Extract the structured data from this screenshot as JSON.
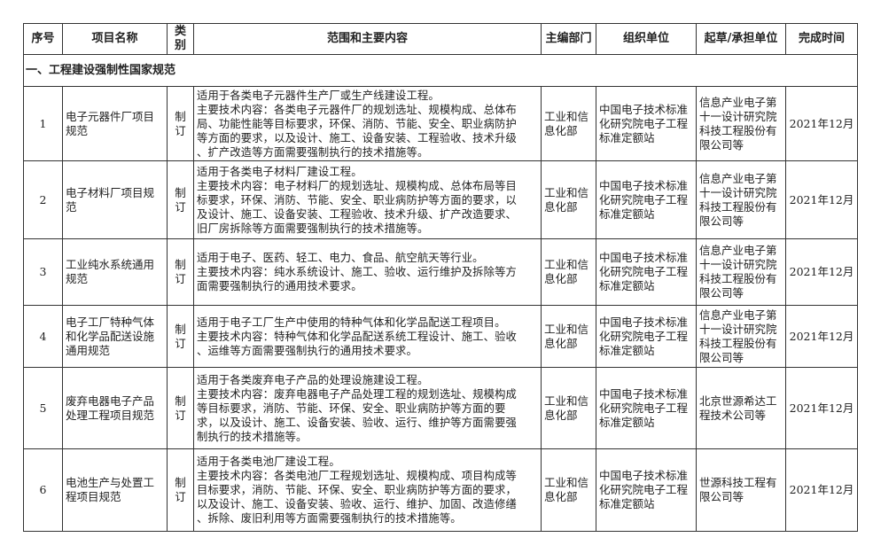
{
  "headers": [
    "序号",
    "项目名称",
    "类别",
    "范围和主要内容",
    "主编部门",
    "组织单位",
    "起草/承担单位",
    "完成时间"
  ],
  "section": "一、工程建设强制性国家规范",
  "rows": [
    {
      "no": "1",
      "name": "电子元器件厂项目\n规范",
      "type": "制订",
      "content": "适用于各类电子元器件生产厂或生产线建设工程。\n主要技术内容：各类电子元器件厂的规划选址、规模构成、总体布\n局、功能性能等目标要求，环保、消防、节能、安全、职业病防护\n等方面的要求，以及设计、施工、设备安装、工程验收、技术升级\n、扩产改造等方面需要强制执行的技术措施等。",
      "dept": "工业和信\n息化部",
      "org": "中国电子技术标准\n化研究院电子工程\n标准定额站",
      "drafter": "信息产业电子第\n十一设计研究院\n科技工程股份有\n限公司等",
      "time": "2021年12月"
    },
    {
      "no": "2",
      "name": "电子材料厂项目规\n范",
      "type": "制订",
      "content": "适用于各类电子材料厂建设工程。\n主要技术内容：电子材料厂的规划选址、规模构成、总体布局等目\n标要求，环保、消防、节能、安全、职业病防护等方面的要求，以\n及设计、施工、设备安装、工程验收、技术升级、扩产改造要求、\n旧厂房拆除等方面需要强制执行的技术措施等。",
      "dept": "工业和信\n息化部",
      "org": "中国电子技术标准\n化研究院电子工程\n标准定额站",
      "drafter": "信息产业电子第\n十一设计研究院\n科技工程股份有\n限公司等",
      "time": "2021年12月"
    },
    {
      "no": "3",
      "name": "工业纯水系统通用\n规范",
      "type": "制订",
      "content": "适用于电子、医药、轻工、电力、食品、航空航天等行业。\n主要技术内容：纯水系统设计、施工、验收、运行维护及拆除等方\n面需要强制执行的通用技术要求。",
      "dept": "工业和信\n息化部",
      "org": "中国电子技术标准\n化研究院电子工程\n标准定额站",
      "drafter": "信息产业电子第\n十一设计研究院\n科技工程股份有\n限公司等",
      "time": "2021年12月"
    },
    {
      "no": "4",
      "name": "电子工厂特种气体\n和化学品配送设施\n通用规范",
      "type": "制订",
      "content": "适用于电子工厂生产中使用的特种气体和化学品配送工程项目。\n主要技术内容：特种气体和化学品配送系统工程设计、施工、验收\n、运维等方面需要强制执行的通用技术要求。",
      "dept": "工业和信\n息化部",
      "org": "中国电子技术标准\n化研究院电子工程\n标准定额站",
      "drafter": "信息产业电子第\n十一设计研究院\n科技工程股份有\n限公司等",
      "time": "2021年12月"
    },
    {
      "no": "5",
      "name": "废弃电器电子产品\n处理工程项目规范",
      "type": "制订",
      "content": "适用于各类废弃电子产品的处理设施建设工程。\n主要技术内容：废弃电器电子产品处理工程的规划选址、规模构成\n等目标要求，消防、节能、环保、安全、职业病防护等方面的要\n求，以及设计、施工、设备安装、验收、运行、维护等方面需要强\n制执行的技术措施等。",
      "dept": "工业和信\n息化部",
      "org": "中国电子技术标准\n化研究院电子工程\n标准定额站",
      "drafter": "北京世源希达工\n程技术公司等",
      "time": "2021年12月"
    },
    {
      "no": "6",
      "name": "电池生产与处置工\n程项目规范",
      "type": "制订",
      "content": "适用于各类电池厂建设工程。\n主要技术内容：各类电池厂工程规划选址、规模构成、项目构成等\n目标要求，消防、节能、环保、安全、职业病防护等方面的要求，\n以及设计、施工、设备安装、验收、运行、维护、加固、改造修缮\n、拆除、废旧利用等方面需要强制执行的技术措施等。",
      "dept": "工业和信\n息化部",
      "org": "中国电子技术标准\n化研究院电子工程\n标准定额站",
      "drafter": "世源科技工程有\n限公司等",
      "time": "2021年12月"
    }
  ]
}
